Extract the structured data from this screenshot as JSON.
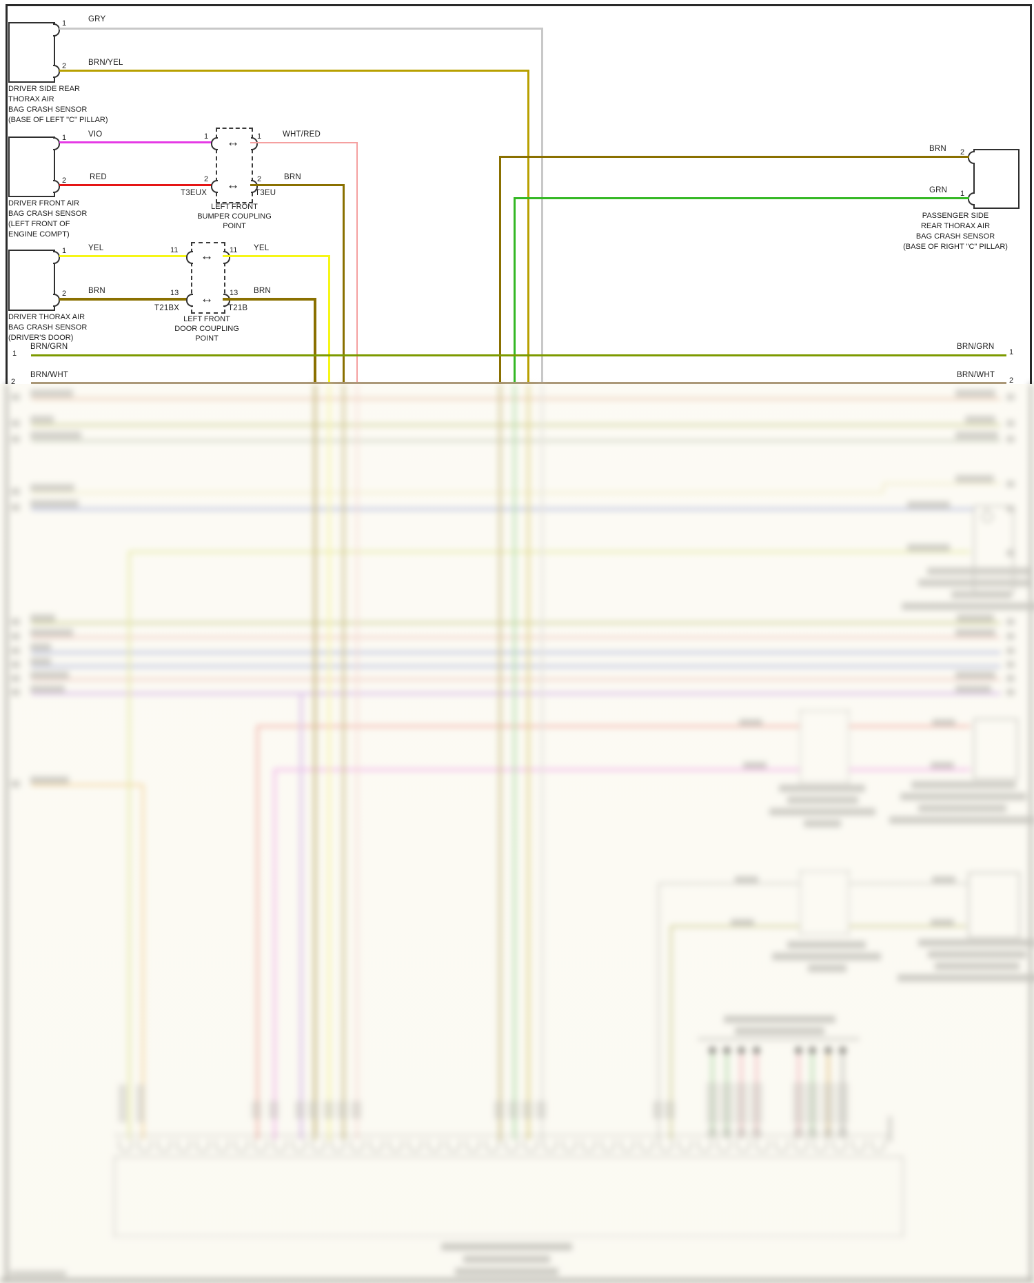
{
  "sensors": {
    "driver_side_rear": {
      "caption": [
        "DRIVER SIDE REAR",
        "THORAX AIR",
        "BAG CRASH SENSOR",
        "(BASE OF LEFT \"C\" PILLAR)"
      ],
      "pin1_num": "1",
      "pin1_wire": "GRY",
      "pin2_num": "2",
      "pin2_wire": "BRN/YEL"
    },
    "driver_front": {
      "caption": [
        "DRIVER FRONT AIR",
        "BAG CRASH SENSOR",
        "(LEFT FRONT OF",
        "ENGINE COMPT)"
      ],
      "pin1_num": "1",
      "pin1_wire": "VIO",
      "pin2_num": "2",
      "pin2_wire": "RED"
    },
    "driver_thorax": {
      "caption": [
        "DRIVER THORAX AIR",
        "BAG CRASH SENSOR",
        "(DRIVER'S DOOR)"
      ],
      "pin1_num": "1",
      "pin1_wire": "YEL",
      "pin2_num": "2",
      "pin2_wire": "BRN"
    },
    "passenger_side_rear": {
      "caption": [
        "PASSENGER SIDE",
        "REAR THORAX AIR",
        "BAG CRASH SENSOR",
        "(BASE OF RIGHT \"C\" PILLAR)"
      ],
      "pin2_num": "2",
      "pin2_wire": "BRN",
      "pin1_num": "1",
      "pin1_wire": "GRN"
    }
  },
  "couplings": {
    "bumper": {
      "code_left": "T3EUX",
      "code_right": "T3EU",
      "caption": [
        "LEFT FRONT",
        "BUMPER COUPLING",
        "POINT"
      ],
      "row1_pin_left": "1",
      "row1_pin_right": "1",
      "row1_wire_out": "WHT/RED",
      "row2_pin_left": "2",
      "row2_pin_right": "2",
      "row2_wire_out": "BRN"
    },
    "door": {
      "code_left": "T21BX",
      "code_right": "T21B",
      "caption": [
        "LEFT FRONT",
        "DOOR COUPLING",
        "POINT"
      ],
      "row1_pin_left": "11",
      "row1_pin_right": "11",
      "row1_wire_out": "YEL",
      "row2_pin_left": "13",
      "row2_pin_right": "13",
      "row2_wire_out": "BRN"
    }
  },
  "bus_wires": {
    "brn_grn": {
      "label": "BRN/GRN",
      "pin": "1"
    },
    "brn_wht": {
      "label": "BRN/WHT",
      "pin": "2"
    }
  },
  "colors": {
    "gry": "#c8c8c8",
    "brn_yel": "#b8a000",
    "vio": "#e53ae5",
    "red": "#e51515",
    "wht_red": "#f5a0a0",
    "brn": "#8a7000",
    "yel": "#f6f616",
    "grn": "#35b825",
    "brn_grn": "#7d9a00",
    "brn_wht": "#ab9878",
    "frame": "#2a2a2a"
  }
}
